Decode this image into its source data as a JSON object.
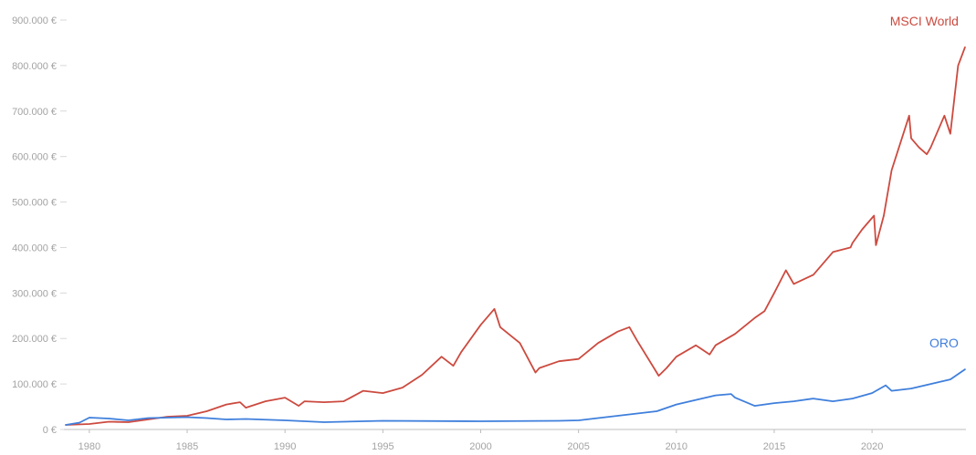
{
  "chart_data": {
    "type": "line",
    "title": "",
    "xlabel": "",
    "ylabel": "",
    "xlim": [
      1978.7,
      2024.8
    ],
    "ylim": [
      0,
      900000
    ],
    "y_ticks": [
      0,
      100000,
      200000,
      300000,
      400000,
      500000,
      600000,
      700000,
      800000,
      900000
    ],
    "y_tick_labels": [
      "0 €",
      "100.000 €",
      "200.000 €",
      "300.000 €",
      "400.000 €",
      "500.000 €",
      "600.000 €",
      "700.000 €",
      "800.000 €",
      "900.000 €"
    ],
    "x_ticks": [
      1980,
      1985,
      1990,
      1995,
      2000,
      2005,
      2010,
      2015,
      2020
    ],
    "x_tick_labels": [
      "1980",
      "1985",
      "1990",
      "1995",
      "2000",
      "2005",
      "2010",
      "2015",
      "2020"
    ],
    "grid": false,
    "legend": "inline-labels-at-line-ends",
    "series": [
      {
        "name": "MSCI World",
        "color": "#cc4a3f",
        "x": [
          1978.8,
          1980,
          1981,
          1982,
          1983,
          1984,
          1985,
          1986,
          1987,
          1987.7,
          1988,
          1989,
          1990,
          1990.7,
          1991,
          1992,
          1993,
          1994,
          1995,
          1996,
          1997,
          1998,
          1998.6,
          1999,
          2000,
          2000.7,
          2001,
          2002,
          2002.8,
          2003,
          2004,
          2005,
          2006,
          2007,
          2007.6,
          2008,
          2009.1,
          2009.5,
          2010,
          2011,
          2011.7,
          2012,
          2013,
          2014,
          2014.5,
          2015,
          2015.6,
          2016,
          2017,
          2018,
          2018.9,
          2019,
          2019.5,
          2020.1,
          2020.2,
          2020.6,
          2021,
          2021.9,
          2022,
          2022.4,
          2022.8,
          2023,
          2023.7,
          2024,
          2024.4,
          2024.75
        ],
        "y": [
          10000,
          12000,
          17000,
          16000,
          22000,
          28000,
          30000,
          40000,
          55000,
          60000,
          48000,
          62000,
          70000,
          52000,
          62000,
          60000,
          62000,
          85000,
          80000,
          92000,
          120000,
          160000,
          140000,
          170000,
          230000,
          265000,
          225000,
          190000,
          125000,
          135000,
          150000,
          155000,
          190000,
          215000,
          225000,
          195000,
          118000,
          135000,
          160000,
          185000,
          165000,
          185000,
          210000,
          245000,
          260000,
          300000,
          350000,
          320000,
          340000,
          390000,
          400000,
          410000,
          440000,
          470000,
          405000,
          470000,
          570000,
          690000,
          640000,
          620000,
          605000,
          620000,
          690000,
          650000,
          800000,
          840000
        ]
      },
      {
        "name": "ORO",
        "color": "#3f7fdc",
        "x": [
          1978.8,
          1979.5,
          1980,
          1981,
          1982,
          1983,
          1984,
          1985,
          1986,
          1987,
          1988,
          1990,
          1992,
          1995,
          2000,
          2004,
          2005,
          2006,
          2007,
          2008,
          2009,
          2010,
          2011,
          2012,
          2012.8,
          2013,
          2014,
          2015,
          2016,
          2017,
          2018,
          2019,
          2020,
          2020.7,
          2021,
          2022,
          2023,
          2024,
          2024.75
        ],
        "y": [
          10000,
          15000,
          26000,
          24000,
          20000,
          25000,
          26000,
          27000,
          25000,
          22000,
          23000,
          20000,
          16000,
          19000,
          18000,
          19000,
          20000,
          25000,
          30000,
          35000,
          40000,
          55000,
          65000,
          75000,
          78000,
          70000,
          52000,
          58000,
          62000,
          68000,
          62000,
          68000,
          80000,
          97000,
          85000,
          90000,
          100000,
          110000,
          132000
        ]
      }
    ]
  }
}
